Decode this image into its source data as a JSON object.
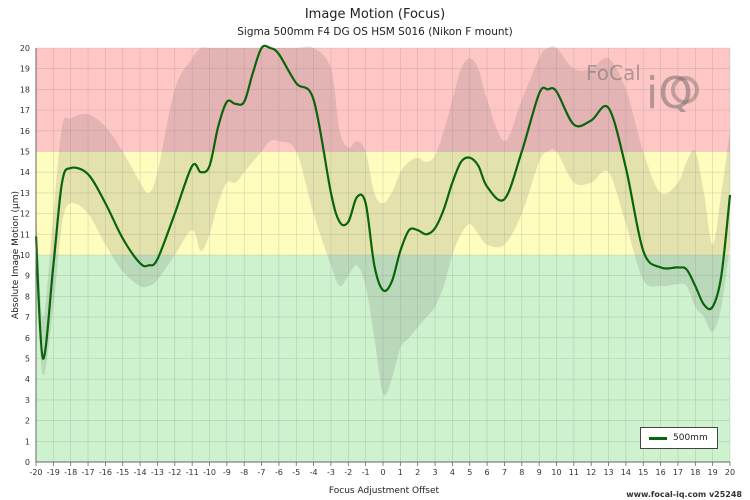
{
  "chart_data": {
    "type": "line",
    "title": "Image Motion (Focus)",
    "subtitle": "Sigma 500mm F4 DG OS HSM S016 (Nikon F mount)",
    "xlabel": "Focus Adjustment Offset",
    "ylabel": "Absolute Image Motion (µm)",
    "xlim": [
      -20,
      20
    ],
    "ylim": [
      0,
      20
    ],
    "x_ticks": [
      -20,
      -19,
      -18,
      -17,
      -16,
      -15,
      -14,
      -13,
      -12,
      -11,
      -10,
      -9,
      -8,
      -7,
      -6,
      -5,
      -4,
      -3,
      -2,
      -1,
      0,
      1,
      2,
      3,
      4,
      5,
      6,
      7,
      8,
      9,
      10,
      11,
      12,
      13,
      14,
      15,
      16,
      17,
      18,
      19,
      20
    ],
    "y_ticks": [
      0,
      1,
      2,
      3,
      4,
      5,
      6,
      7,
      8,
      9,
      10,
      11,
      12,
      13,
      14,
      15,
      16,
      17,
      18,
      19,
      20
    ],
    "bands": [
      {
        "from": 0,
        "to": 10,
        "color": "#cdf2cd"
      },
      {
        "from": 10,
        "to": 15,
        "color": "#fefdbe"
      },
      {
        "from": 15,
        "to": 20,
        "color": "#ffc6c6"
      }
    ],
    "series": [
      {
        "name": "500mm",
        "color": "#0a640a",
        "x": [
          -20,
          -19.6,
          -19,
          -18.5,
          -18,
          -17,
          -16,
          -15,
          -14,
          -13.5,
          -13,
          -12,
          -11,
          -10.5,
          -10,
          -9.5,
          -9,
          -8.5,
          -8,
          -7.5,
          -7,
          -6.5,
          -6,
          -5,
          -4,
          -3,
          -2.5,
          -2,
          -1.5,
          -1,
          -0.5,
          0,
          0.5,
          1,
          1.5,
          2,
          2.5,
          3,
          3.5,
          4,
          4.5,
          5,
          5.5,
          6,
          7,
          8,
          9,
          9.5,
          10,
          11,
          12,
          13,
          14,
          15,
          16,
          17,
          17.5,
          18,
          18.5,
          19,
          19.5,
          20
        ],
        "y": [
          10.9,
          5,
          9.5,
          13.5,
          14.2,
          13.9,
          12.5,
          10.8,
          9.6,
          9.5,
          9.8,
          12,
          14.3,
          14,
          14.3,
          16.2,
          17.4,
          17.3,
          17.4,
          18.8,
          20.2,
          20.3,
          19.7,
          18.3,
          17.5,
          13,
          11.6,
          11.6,
          12.8,
          12.5,
          9.5,
          8.3,
          8.7,
          10.2,
          11.2,
          11.2,
          11,
          11.3,
          12.2,
          13.5,
          14.5,
          14.7,
          14.3,
          13.3,
          12.7,
          15,
          17.8,
          18,
          17.9,
          16.3,
          16.5,
          17.1,
          14.2,
          10.2,
          9.4,
          9.4,
          9.3,
          8.5,
          7.6,
          7.5,
          9,
          12.9
        ],
        "range_upper": [
          12.5,
          7,
          12,
          16.2,
          16.6,
          16.8,
          16.2,
          15,
          13.5,
          13,
          14,
          18,
          19.5,
          20,
          20,
          20,
          20,
          20,
          20,
          20,
          20,
          20,
          20,
          20,
          20,
          19,
          16,
          15.2,
          15.5,
          15,
          13,
          12.5,
          13,
          14,
          14.5,
          14.7,
          14.5,
          14.8,
          16,
          17.5,
          19,
          19.5,
          19,
          17.5,
          15.5,
          17.5,
          19.5,
          20,
          20,
          19,
          19,
          19.5,
          18,
          15,
          13,
          13.5,
          14.5,
          15,
          13,
          10.5,
          13,
          16
        ],
        "range_lower": [
          9,
          4.2,
          7.5,
          11.5,
          12.5,
          12,
          10.5,
          9.2,
          8.5,
          8.5,
          8.8,
          10,
          11.2,
          10.2,
          11,
          12.5,
          13.5,
          13.5,
          14,
          14.5,
          15,
          15.5,
          15.5,
          15,
          12,
          9.5,
          8.5,
          9,
          9.5,
          8.5,
          6,
          3.3,
          4,
          5.5,
          6,
          6.5,
          7,
          7.5,
          8.5,
          10,
          11,
          11.5,
          11,
          10.5,
          10.5,
          12,
          14.5,
          15,
          15,
          13.5,
          13.5,
          14,
          11.5,
          8.8,
          8.5,
          8.6,
          8.5,
          7.5,
          7,
          6.3,
          7.5,
          10.5
        ]
      }
    ],
    "legend": {
      "position": "bottom-right"
    },
    "grid": true
  },
  "watermark": {
    "logo_text": "FoCal iQ"
  },
  "footer": {
    "text": "www.focal-iq.com  v25248"
  }
}
